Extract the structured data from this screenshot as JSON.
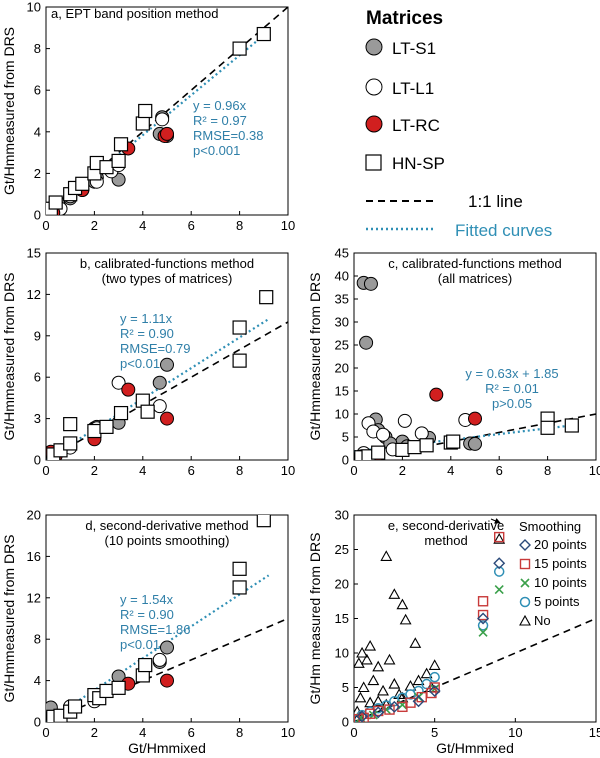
{
  "legend": {
    "title": "Matrices",
    "items": [
      {
        "key": "s1",
        "label": "LT-S1",
        "symbol": "circle",
        "fill": "#9a9a9a"
      },
      {
        "key": "l1",
        "label": "LT-L1",
        "symbol": "circle",
        "fill": "#ffffff"
      },
      {
        "key": "rc",
        "label": "LT-RC",
        "symbol": "circle",
        "fill": "#d11f1f"
      },
      {
        "key": "hn",
        "label": "HN-SP",
        "symbol": "square",
        "fill": "#ffffff"
      },
      {
        "key": "line11",
        "label": "1:1 line",
        "symbol": "dashed"
      },
      {
        "key": "fit",
        "label": "Fitted curves",
        "symbol": "dotted",
        "color": "#2f8fb5"
      }
    ]
  },
  "colors": {
    "s1": "#9a9a9a",
    "l1": "#ffffff",
    "rc": "#d11f1f",
    "fit": "#2f8fb5",
    "stats": "#2f7fa8"
  },
  "chart_data": [
    {
      "id": "a",
      "type": "scatter",
      "title": "a, EPT band  position method",
      "subtitle": "",
      "xlim": [
        0,
        10
      ],
      "ylim": [
        0,
        10
      ],
      "xticks": [
        0,
        2,
        4,
        6,
        8,
        10
      ],
      "yticks": [
        0,
        2,
        4,
        6,
        8,
        10
      ],
      "xlabel": "",
      "ylabel": "Gt/Hmmeasured from DRS",
      "fit_slope": 0.96,
      "fit_intercept": 0,
      "stats": [
        "y = 0.96x",
        "R² = 0.97",
        "RMSE=0.38",
        "p<0.001"
      ],
      "series": [
        {
          "key": "s1",
          "points": [
            [
              0.2,
              0.3
            ],
            [
              0.5,
              0.6
            ],
            [
              1.0,
              0.8
            ],
            [
              1.5,
              1.2
            ],
            [
              2.0,
              1.6
            ],
            [
              2.1,
              1.8
            ],
            [
              3.0,
              1.7
            ],
            [
              3.0,
              2.6
            ],
            [
              4.7,
              3.9
            ],
            [
              4.8,
              4.7
            ],
            [
              5.0,
              3.8
            ]
          ]
        },
        {
          "key": "l1",
          "points": [
            [
              0.3,
              0.4
            ],
            [
              0.6,
              0.3
            ],
            [
              1.0,
              0.9
            ],
            [
              2.1,
              1.6
            ],
            [
              2.7,
              2.1
            ],
            [
              3.0,
              2.4
            ],
            [
              4.8,
              4.6
            ]
          ]
        },
        {
          "key": "rc",
          "points": [
            [
              0.2,
              0.2
            ],
            [
              0.3,
              0.1
            ],
            [
              1.5,
              1.2
            ],
            [
              3.4,
              3.2
            ],
            [
              4.9,
              3.8
            ],
            [
              5.0,
              3.9
            ]
          ]
        },
        {
          "key": "hn",
          "points": [
            [
              0.2,
              0.3
            ],
            [
              0.4,
              0.6
            ],
            [
              1.0,
              1.0
            ],
            [
              1.2,
              1.3
            ],
            [
              1.5,
              1.5
            ],
            [
              2.0,
              2.0
            ],
            [
              2.1,
              2.5
            ],
            [
              2.5,
              2.3
            ],
            [
              3.0,
              2.6
            ],
            [
              3.1,
              3.4
            ],
            [
              4.0,
              4.4
            ],
            [
              4.1,
              5.0
            ],
            [
              8.0,
              8.0
            ],
            [
              9.0,
              8.7
            ]
          ]
        }
      ]
    },
    {
      "id": "b",
      "type": "scatter",
      "title": "b, calibrated-functions method",
      "subtitle": "(two types of matrices)",
      "xlim": [
        0,
        10
      ],
      "ylim": [
        0,
        15
      ],
      "xticks": [
        0,
        2,
        4,
        6,
        8,
        10
      ],
      "yticks": [
        0,
        3,
        6,
        9,
        12,
        15
      ],
      "xlabel": "",
      "ylabel": "Gt/Hmmeasured from DRS",
      "fit_slope": 1.11,
      "fit_intercept": 0,
      "stats": [
        "y = 1.11x",
        "R² = 0.90",
        "RMSE=0.79",
        "p<0.01"
      ],
      "series": [
        {
          "key": "s1",
          "points": [
            [
              0.3,
              0.3
            ],
            [
              0.6,
              0.7
            ],
            [
              1.0,
              1.0
            ],
            [
              2.0,
              2.3
            ],
            [
              2.1,
              2.4
            ],
            [
              3.0,
              2.7
            ],
            [
              4.7,
              5.6
            ],
            [
              5.0,
              6.9
            ]
          ]
        },
        {
          "key": "l1",
          "points": [
            [
              0.3,
              0.5
            ],
            [
              1.0,
              0.9
            ],
            [
              2.1,
              2.3
            ],
            [
              3.0,
              5.6
            ],
            [
              4.7,
              3.9
            ]
          ]
        },
        {
          "key": "rc",
          "points": [
            [
              0.2,
              0.6
            ],
            [
              0.4,
              0.3
            ],
            [
              2.0,
              1.5
            ],
            [
              3.4,
              5.1
            ],
            [
              5.0,
              3.0
            ]
          ]
        },
        {
          "key": "hn",
          "points": [
            [
              0.3,
              0.4
            ],
            [
              0.6,
              0.7
            ],
            [
              1.0,
              2.6
            ],
            [
              1.0,
              1.2
            ],
            [
              2.0,
              2.1
            ],
            [
              2.5,
              2.4
            ],
            [
              3.1,
              3.4
            ],
            [
              4.0,
              4.3
            ],
            [
              4.2,
              3.5
            ],
            [
              8.0,
              9.6
            ],
            [
              8.0,
              7.2
            ],
            [
              9.1,
              11.8
            ]
          ]
        }
      ]
    },
    {
      "id": "c",
      "type": "scatter",
      "title": "c, calibrated-functions method",
      "subtitle": "(all matrices)",
      "xlim": [
        0,
        10
      ],
      "ylim": [
        0,
        45
      ],
      "xticks": [
        0,
        2,
        4,
        6,
        8,
        10
      ],
      "yticks": [
        0,
        5,
        10,
        15,
        20,
        25,
        30,
        35,
        40,
        45
      ],
      "xlabel": "",
      "ylabel": "Gt/Hmmeasured from DRS",
      "fit_slope": 0.63,
      "fit_intercept": 1.85,
      "stats": [
        "y = 0.63x + 1.85",
        "R² = 0.01",
        "p>0.05"
      ],
      "series": [
        {
          "key": "s1",
          "points": [
            [
              0.4,
              38.5
            ],
            [
              0.7,
              38.3
            ],
            [
              0.5,
              25.5
            ],
            [
              0.9,
              8.8
            ],
            [
              1.0,
              6.5
            ],
            [
              1.3,
              5.0
            ],
            [
              2.0,
              4.0
            ],
            [
              2.2,
              3.0
            ],
            [
              3.1,
              4.8
            ],
            [
              4.8,
              3.6
            ],
            [
              5.0,
              3.5
            ],
            [
              1.5,
              3.6
            ]
          ]
        },
        {
          "key": "l1",
          "points": [
            [
              0.4,
              1.5
            ],
            [
              0.6,
              8.0
            ],
            [
              0.8,
              6.2
            ],
            [
              1.2,
              5.5
            ],
            [
              2.1,
              8.5
            ],
            [
              1.6,
              2.3
            ],
            [
              2.8,
              5.8
            ],
            [
              4.6,
              8.7
            ]
          ]
        },
        {
          "key": "rc",
          "points": [
            [
              0.3,
              0.8
            ],
            [
              3.4,
              14.2
            ],
            [
              5.0,
              9.0
            ],
            [
              1.0,
              1.2
            ]
          ]
        },
        {
          "key": "hn",
          "points": [
            [
              0.3,
              0.6
            ],
            [
              0.6,
              0.8
            ],
            [
              1.0,
              1.6
            ],
            [
              2.0,
              2.2
            ],
            [
              2.5,
              2.8
            ],
            [
              3.0,
              3.2
            ],
            [
              4.0,
              3.8
            ],
            [
              4.1,
              4.0
            ],
            [
              8.0,
              9.0
            ],
            [
              8.0,
              7.0
            ],
            [
              9.0,
              7.5
            ]
          ]
        }
      ]
    },
    {
      "id": "d",
      "type": "scatter",
      "title": "d, second-derivative method",
      "subtitle": "(10 points  smoothing)",
      "xlim": [
        0,
        10
      ],
      "ylim": [
        0,
        20
      ],
      "xticks": [
        0,
        2,
        4,
        6,
        8,
        10
      ],
      "yticks": [
        0,
        4,
        8,
        12,
        16,
        20
      ],
      "xlabel": "Gt/Hmmixed",
      "ylabel": "Gt/Hmmeasured from DRS",
      "fit_slope": 1.54,
      "fit_intercept": 0,
      "stats": [
        "y = 1.54x",
        "R² = 0.90",
        "RMSE=1.86",
        "p<0.01"
      ],
      "series": [
        {
          "key": "s1",
          "points": [
            [
              0.2,
              1.4
            ],
            [
              0.5,
              0.6
            ],
            [
              1.0,
              1.2
            ],
            [
              2.0,
              2.4
            ],
            [
              3.0,
              4.4
            ],
            [
              4.7,
              5.8
            ],
            [
              5.0,
              7.2
            ]
          ]
        },
        {
          "key": "l1",
          "points": [
            [
              0.3,
              0.5
            ],
            [
              1.0,
              1.5
            ],
            [
              2.0,
              2.0
            ],
            [
              4.7,
              6.0
            ]
          ]
        },
        {
          "key": "rc",
          "points": [
            [
              0.3,
              0.4
            ],
            [
              3.4,
              3.7
            ],
            [
              5.0,
              4.0
            ]
          ]
        },
        {
          "key": "hn",
          "points": [
            [
              0.3,
              0.5
            ],
            [
              0.6,
              0.6
            ],
            [
              1.0,
              1.0
            ],
            [
              1.2,
              1.5
            ],
            [
              2.0,
              2.6
            ],
            [
              2.2,
              2.3
            ],
            [
              2.5,
              3.0
            ],
            [
              3.0,
              3.3
            ],
            [
              4.0,
              4.5
            ],
            [
              4.1,
              5.5
            ],
            [
              8.0,
              14.8
            ],
            [
              8.0,
              13.0
            ],
            [
              9.0,
              19.5
            ]
          ]
        }
      ]
    },
    {
      "id": "e",
      "type": "scatter",
      "title": "e, second-derivative",
      "subtitle": "method",
      "xlim": [
        0,
        15
      ],
      "ylim": [
        0,
        30
      ],
      "xticks": [
        0,
        5,
        10,
        15
      ],
      "yticks": [
        0,
        5,
        10,
        15,
        20,
        25,
        30
      ],
      "xlabel": "Gt/Hmmixed",
      "ylabel": "Gt/Hm measured from DRS",
      "fit_slope": 0,
      "fit_intercept": 0,
      "stats": [],
      "smoothing_legend": {
        "title": "Smoothing",
        "items": [
          {
            "key": "p20",
            "label": "20 points",
            "symbol": "diamond",
            "color": "#2b4a7a"
          },
          {
            "key": "p15",
            "label": "15 points",
            "symbol": "square",
            "color": "#c83a3a"
          },
          {
            "key": "p10",
            "label": "10 points",
            "symbol": "cross",
            "color": "#3aa04a"
          },
          {
            "key": "p5",
            "label": "5 points",
            "symbol": "circle",
            "color": "#2f8fb5"
          },
          {
            "key": "no",
            "label": "No",
            "symbol": "triangle",
            "color": "#000000"
          }
        ]
      },
      "series": [
        {
          "key": "no",
          "points": [
            [
              2.0,
              24.0
            ],
            [
              3.0,
              17.0
            ],
            [
              2.5,
              18.5
            ],
            [
              3.2,
              14.8
            ],
            [
              1.0,
              11.0
            ],
            [
              0.5,
              10.0
            ],
            [
              3.8,
              11.4
            ],
            [
              0.3,
              8.5
            ],
            [
              0.8,
              9.0
            ],
            [
              1.5,
              8.0
            ],
            [
              2.2,
              9.0
            ],
            [
              1.2,
              6.0
            ],
            [
              0.6,
              5.0
            ],
            [
              0.4,
              3.5
            ],
            [
              1.8,
              4.5
            ],
            [
              2.5,
              5.5
            ],
            [
              3.0,
              3.5
            ],
            [
              3.5,
              5.2
            ],
            [
              4.0,
              6.0
            ],
            [
              4.5,
              7.0
            ],
            [
              5.0,
              8.2
            ],
            [
              4.8,
              5.0
            ],
            [
              1.0,
              2.8
            ],
            [
              2.0,
              2.5
            ],
            [
              0.2,
              1.5
            ],
            [
              0.3,
              0.8
            ],
            [
              1.5,
              3.0
            ],
            [
              2.8,
              4.0
            ],
            [
              9.0,
              26.5
            ]
          ]
        },
        {
          "key": "p5",
          "points": [
            [
              0.3,
              0.5
            ],
            [
              0.5,
              1.0
            ],
            [
              1.0,
              1.5
            ],
            [
              1.5,
              2.0
            ],
            [
              2.0,
              2.4
            ],
            [
              2.5,
              3.0
            ],
            [
              3.0,
              3.5
            ],
            [
              3.5,
              4.0
            ],
            [
              4.0,
              4.5
            ],
            [
              4.5,
              5.5
            ],
            [
              5.0,
              6.5
            ],
            [
              8.0,
              14.0
            ],
            [
              9.0,
              21.8
            ]
          ]
        },
        {
          "key": "p10",
          "points": [
            [
              0.4,
              0.6
            ],
            [
              1.2,
              1.0
            ],
            [
              2.0,
              1.8
            ],
            [
              3.0,
              2.5
            ],
            [
              4.0,
              3.6
            ],
            [
              5.0,
              4.8
            ],
            [
              8.0,
              13.0
            ],
            [
              9.0,
              19.2
            ]
          ]
        },
        {
          "key": "p15",
          "points": [
            [
              0.3,
              0.4
            ],
            [
              0.6,
              0.6
            ],
            [
              1.0,
              1.2
            ],
            [
              1.5,
              1.6
            ],
            [
              2.2,
              1.8
            ],
            [
              3.0,
              2.2
            ],
            [
              3.5,
              2.8
            ],
            [
              4.2,
              3.6
            ],
            [
              4.8,
              4.2
            ],
            [
              5.0,
              5.0
            ],
            [
              8.0,
              17.5
            ],
            [
              8.0,
              15.5
            ],
            [
              9.0,
              26.8
            ]
          ]
        },
        {
          "key": "p20",
          "points": [
            [
              0.5,
              0.8
            ],
            [
              1.5,
              1.4
            ],
            [
              2.5,
              2.2
            ],
            [
              4.0,
              3.0
            ],
            [
              5.0,
              4.5
            ],
            [
              8.0,
              15.0
            ],
            [
              9.0,
              23.0
            ]
          ]
        }
      ]
    }
  ]
}
